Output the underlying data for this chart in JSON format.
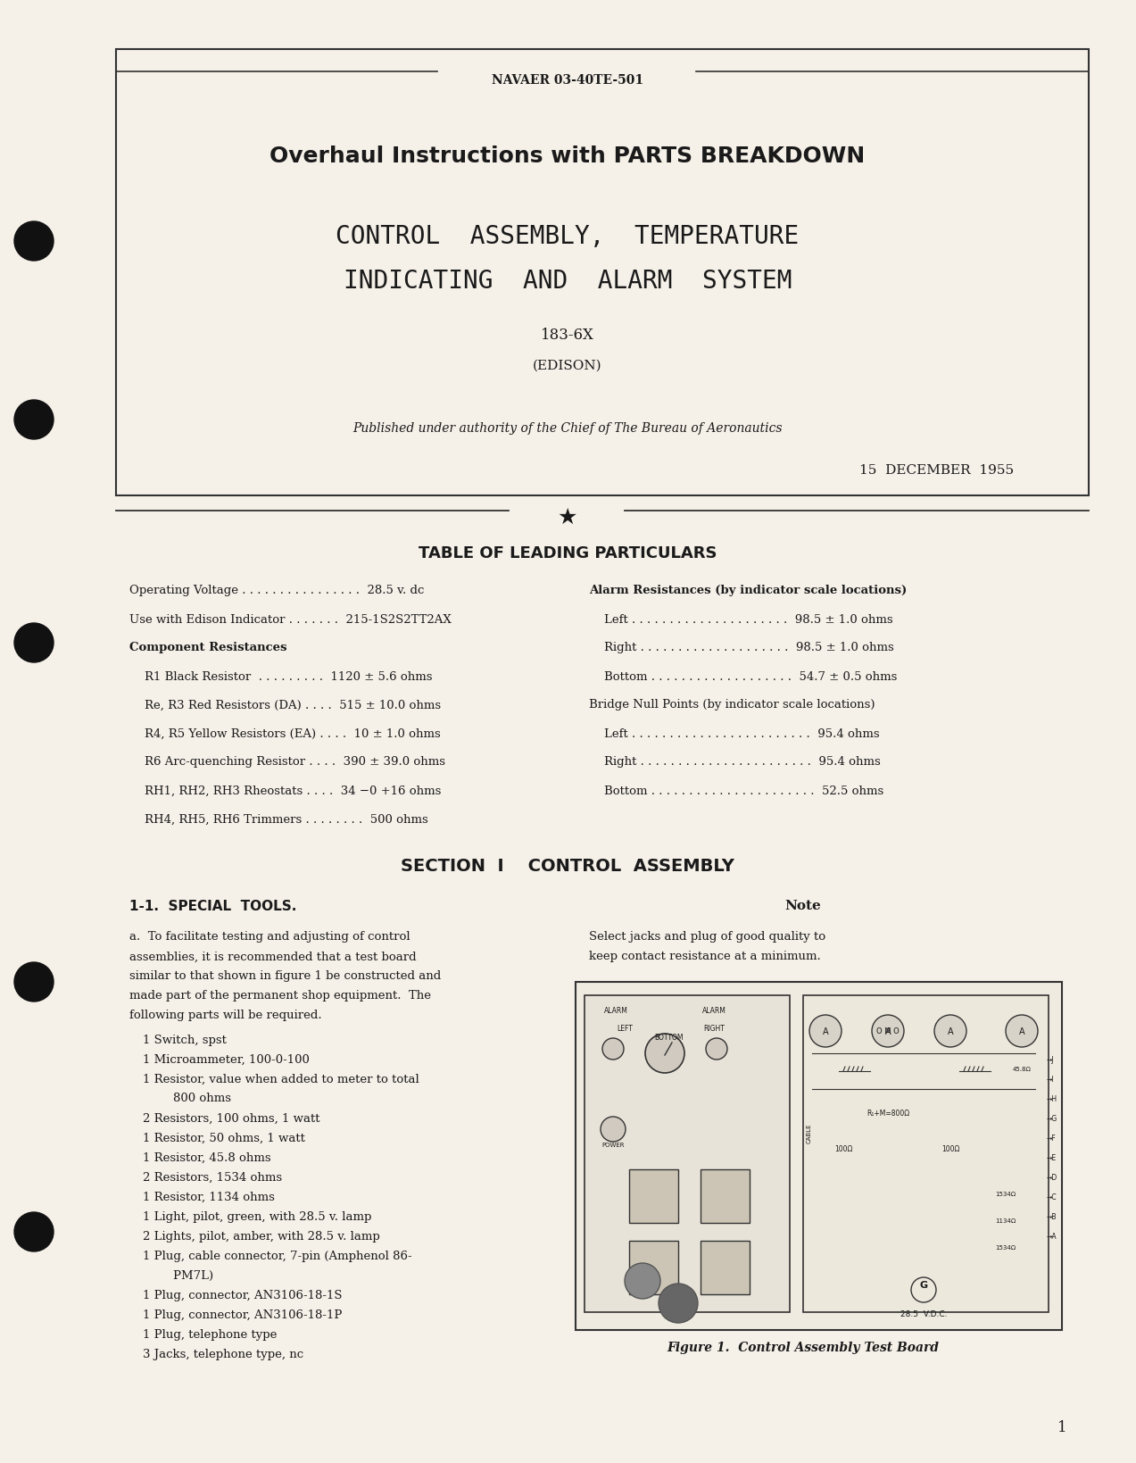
{
  "bg_color": "#f5f0e8",
  "page_bg": "#f5f0e8",
  "text_color": "#1a1a1a",
  "header_doc_num": "NAVAER 03-40TE-501",
  "title_line1": "Overhaul Instructions with PARTS BREAKDOWN",
  "title_line2": "CONTROL  ASSEMBLY,  TEMPERATURE",
  "title_line3": "INDICATING  AND  ALARM  SYSTEM",
  "part_number": "183-6X",
  "manufacturer": "(EDISON)",
  "authority_line": "Published under authority of the Chief of The Bureau of Aeronautics",
  "date_line": "15  DECEMBER  1955",
  "section_divider": "TABLE OF LEADING PARTICULARS",
  "left_specs": [
    "Operating Voltage . . . . . . . . . . . . . . . .  28.5 v. dc",
    "Use with Edison Indicator . . . . . . .  215-1S2S2TT2AX",
    "Component Resistances",
    "    R1 Black Resistor  . . . . . . . . .  1120 ± 5.6 ohms",
    "    Re, R3 Red Resistors (DA) . . . .  515 ± 10.0 ohms",
    "    R4, R5 Yellow Resistors (EA) . . . .  10 ± 1.0 ohms",
    "    R6 Arc-quenching Resistor . . . .  390 ± 39.0 ohms",
    "    RH1, RH2, RH3 Rheostats . . . .  34 −0 +16 ohms",
    "    RH4, RH5, RH6 Trimmers . . . . . . . .  500 ohms"
  ],
  "right_specs": [
    "Alarm Resistances (by indicator scale locations)",
    "    Left . . . . . . . . . . . . . . . . . . . . .  98.5 ± 1.0 ohms",
    "    Right . . . . . . . . . . . . . . . . . . . .  98.5 ± 1.0 ohms",
    "    Bottom . . . . . . . . . . . . . . . . . . .  54.7 ± 0.5 ohms",
    "Bridge Null Points (by indicator scale locations)",
    "    Left . . . . . . . . . . . . . . . . . . . . . . . .  95.4 ohms",
    "    Right . . . . . . . . . . . . . . . . . . . . . . .  95.4 ohms",
    "    Bottom . . . . . . . . . . . . . . . . . . . . . .  52.5 ohms"
  ],
  "section1_title": "SECTION  I    CONTROL  ASSEMBLY",
  "subsection_title": "1-1.  SPECIAL  TOOLS.",
  "note_title": "Note",
  "note_text": "Select jacks and plug of good quality to\nkeep contact resistance at a minimum.",
  "para_a": "a.  To facilitate testing and adjusting of control assemblies, it is recommended that a test board similar to that shown in figure 1 be constructed and made part of the permanent shop equipment.  The following parts will be required.",
  "parts_list": [
    "1 Switch, spst",
    "1 Microammeter, 100-0-100",
    "1 Resistor, value when added to meter to total",
    "        800 ohms",
    "2 Resistors, 100 ohms, 1 watt",
    "1 Resistor, 50 ohms, 1 watt",
    "1 Resistor, 45.8 ohms",
    "2 Resistors, 1534 ohms",
    "1 Resistor, 1134 ohms",
    "1 Light, pilot, green, with 28.5 v. lamp",
    "2 Lights, pilot, amber, with 28.5 v. lamp",
    "1 Plug, cable connector, 7-pin (Amphenol 86-",
    "        PM7L)",
    "1 Plug, connector, AN3106-18-1S",
    "1 Plug, connector, AN3106-18-1P",
    "1 Plug, telephone type",
    "3 Jacks, telephone type, nc"
  ],
  "figure_caption": "Figure 1.  Control Assembly Test Board",
  "page_number": "1"
}
